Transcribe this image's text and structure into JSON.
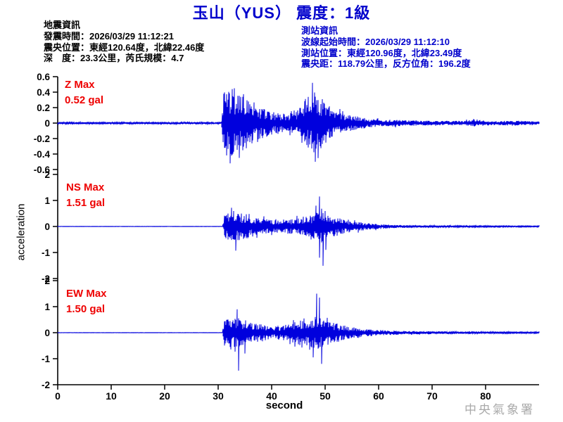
{
  "title": "玉山（YUS） 震度：1級",
  "earthquake_info": {
    "heading": "地震資訊",
    "lines": [
      "發震時間：2026/03/29 11:12:21",
      "震央位置：東經120.64度，北緯22.46度",
      "深　度：23.3公里，芮氏規模：4.7"
    ]
  },
  "station_info": {
    "heading": "測站資訊",
    "lines": [
      "波線起始時間：2026/03/29 11:12:10",
      "測站位置：東經120.96度，北緯23.49度",
      "震央距：118.79公里，反方位角：196.2度"
    ]
  },
  "watermark": "中央氣象署",
  "colors": {
    "trace_blue": "#0000dd",
    "title_blue": "#0000cc",
    "station_blue": "#0000cc",
    "label_red": "#ee0000",
    "axis_black": "#000000",
    "watermark_gray": "#aaaaaa"
  },
  "chart_data": {
    "type": "line",
    "xlabel": "second",
    "ylabel": "acceleration",
    "x_ticks": [
      0,
      10,
      20,
      30,
      40,
      50,
      60,
      70,
      80
    ],
    "x_range": [
      0,
      90
    ],
    "panels": [
      {
        "id": "Z",
        "label": "Z Max",
        "value_label": "0.52 gal",
        "max_gal": 0.52,
        "y_ticks": [
          0.6,
          0.4,
          0.2,
          0,
          -0.2,
          -0.4,
          -0.6
        ],
        "y_range": [
          -0.6,
          0.6
        ],
        "envelope": [
          [
            0,
            0.013
          ],
          [
            30.6,
            0.013
          ],
          [
            31.0,
            0.4
          ],
          [
            32.5,
            0.45
          ],
          [
            34,
            0.4
          ],
          [
            35.5,
            0.33
          ],
          [
            37,
            0.26
          ],
          [
            38.5,
            0.2
          ],
          [
            40,
            0.15
          ],
          [
            42,
            0.12
          ],
          [
            43.5,
            0.13
          ],
          [
            45,
            0.2
          ],
          [
            46.5,
            0.33
          ],
          [
            47.8,
            0.42
          ],
          [
            49,
            0.35
          ],
          [
            50,
            0.28
          ],
          [
            51.5,
            0.18
          ],
          [
            53,
            0.13
          ],
          [
            55,
            0.1
          ],
          [
            57,
            0.07
          ],
          [
            60,
            0.05
          ],
          [
            64,
            0.04
          ],
          [
            68,
            0.032
          ],
          [
            72,
            0.028
          ],
          [
            76,
            0.03
          ],
          [
            78,
            0.045
          ],
          [
            80,
            0.032
          ],
          [
            83,
            0.028
          ],
          [
            85,
            0.035
          ],
          [
            87,
            0.028
          ],
          [
            89,
            0.022
          ]
        ],
        "spikes": [
          [
            32.3,
            -0.52
          ],
          [
            33.0,
            0.45
          ],
          [
            34.0,
            -0.45
          ],
          [
            47.6,
            0.52
          ],
          [
            48.2,
            -0.5
          ]
        ]
      },
      {
        "id": "NS",
        "label": "NS Max",
        "value_label": "1.51 gal",
        "max_gal": 1.51,
        "y_ticks": [
          2,
          1,
          0,
          -1,
          -2
        ],
        "y_range": [
          -2,
          2
        ],
        "envelope": [
          [
            0,
            0.004
          ],
          [
            30.8,
            0.004
          ],
          [
            31.2,
            0.45
          ],
          [
            32.3,
            0.6
          ],
          [
            33.5,
            0.62
          ],
          [
            35,
            0.5
          ],
          [
            36.5,
            0.38
          ],
          [
            38,
            0.3
          ],
          [
            40,
            0.27
          ],
          [
            42,
            0.26
          ],
          [
            44,
            0.3
          ],
          [
            45.5,
            0.33
          ],
          [
            47,
            0.42
          ],
          [
            48.3,
            0.55
          ],
          [
            49.2,
            0.75
          ],
          [
            50,
            0.5
          ],
          [
            51,
            0.42
          ],
          [
            52.5,
            0.33
          ],
          [
            54,
            0.25
          ],
          [
            56,
            0.18
          ],
          [
            58,
            0.13
          ],
          [
            60,
            0.1
          ],
          [
            63,
            0.07
          ],
          [
            66,
            0.05
          ],
          [
            70,
            0.04
          ],
          [
            75,
            0.032
          ],
          [
            80,
            0.026
          ],
          [
            85,
            0.022
          ],
          [
            89,
            0.02
          ]
        ],
        "spikes": [
          [
            32.5,
            0.72
          ],
          [
            33.3,
            -0.93
          ],
          [
            48.3,
            0.8
          ],
          [
            48.9,
            -1.2
          ],
          [
            49.0,
            1.15
          ],
          [
            49.6,
            -1.51
          ],
          [
            50.1,
            -0.9
          ]
        ]
      },
      {
        "id": "EW",
        "label": "EW Max",
        "value_label": "1.50 gal",
        "max_gal": 1.5,
        "y_ticks": [
          2,
          1,
          0,
          -1,
          -2
        ],
        "y_range": [
          -2,
          2
        ],
        "envelope": [
          [
            0,
            0.004
          ],
          [
            30.8,
            0.004
          ],
          [
            31.2,
            0.5
          ],
          [
            32.5,
            0.58
          ],
          [
            34,
            0.55
          ],
          [
            35.5,
            0.45
          ],
          [
            37,
            0.36
          ],
          [
            38.5,
            0.3
          ],
          [
            40,
            0.27
          ],
          [
            42,
            0.28
          ],
          [
            43.5,
            0.35
          ],
          [
            45,
            0.45
          ],
          [
            46.5,
            0.6
          ],
          [
            47.8,
            0.72
          ],
          [
            48.8,
            0.65
          ],
          [
            50,
            0.52
          ],
          [
            51.5,
            0.4
          ],
          [
            53,
            0.3
          ],
          [
            55,
            0.22
          ],
          [
            57,
            0.16
          ],
          [
            59,
            0.12
          ],
          [
            62,
            0.09
          ],
          [
            65,
            0.07
          ],
          [
            69,
            0.055
          ],
          [
            73,
            0.045
          ],
          [
            78,
            0.038
          ],
          [
            83,
            0.03
          ],
          [
            89,
            0.024
          ]
        ],
        "spikes": [
          [
            33.5,
            0.9
          ],
          [
            33.8,
            -1.46
          ],
          [
            35.0,
            -0.8
          ],
          [
            47.8,
            -0.95
          ],
          [
            48.4,
            1.5
          ],
          [
            49.0,
            1.35
          ],
          [
            49.4,
            -1.2
          ]
        ]
      }
    ]
  }
}
